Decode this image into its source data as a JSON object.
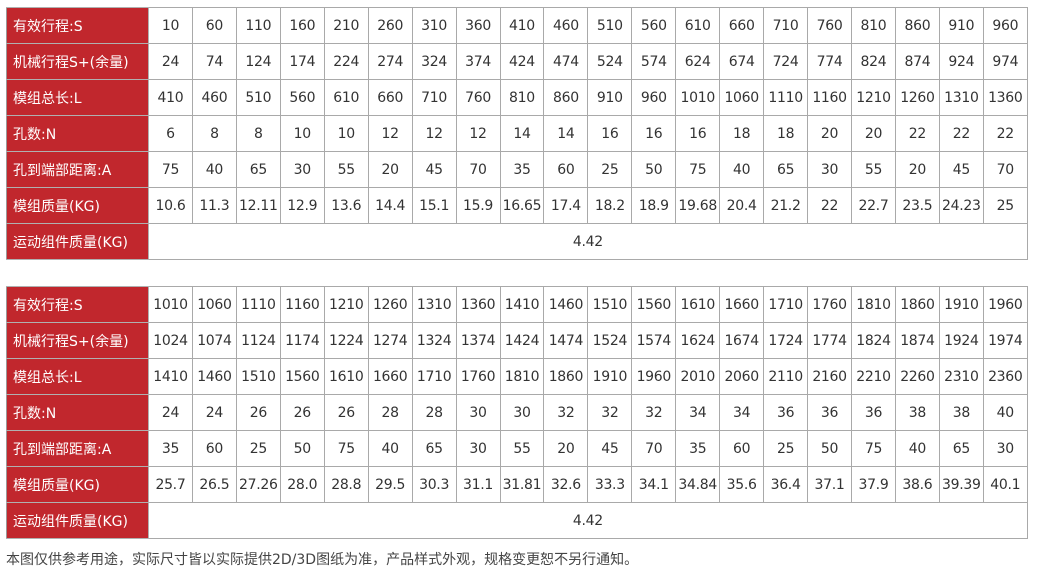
{
  "colors": {
    "header_bg": "#c1272d",
    "header_text": "#ffffff",
    "border": "#a9a9a9"
  },
  "tables": [
    {
      "rows": [
        {
          "label": "有效行程:S",
          "values": [
            "10",
            "60",
            "110",
            "160",
            "210",
            "260",
            "310",
            "360",
            "410",
            "460",
            "510",
            "560",
            "610",
            "660",
            "710",
            "760",
            "810",
            "860",
            "910",
            "960"
          ]
        },
        {
          "label": "机械行程S+(余量)",
          "values": [
            "24",
            "74",
            "124",
            "174",
            "224",
            "274",
            "324",
            "374",
            "424",
            "474",
            "524",
            "574",
            "624",
            "674",
            "724",
            "774",
            "824",
            "874",
            "924",
            "974"
          ]
        },
        {
          "label": "模组总长:L",
          "values": [
            "410",
            "460",
            "510",
            "560",
            "610",
            "660",
            "710",
            "760",
            "810",
            "860",
            "910",
            "960",
            "1010",
            "1060",
            "1110",
            "1160",
            "1210",
            "1260",
            "1310",
            "1360"
          ]
        },
        {
          "label": "孔数:N",
          "values": [
            "6",
            "8",
            "8",
            "10",
            "10",
            "12",
            "12",
            "12",
            "14",
            "14",
            "16",
            "16",
            "16",
            "18",
            "18",
            "20",
            "20",
            "22",
            "22",
            "22"
          ]
        },
        {
          "label": "孔到端部距离:A",
          "values": [
            "75",
            "40",
            "65",
            "30",
            "55",
            "20",
            "45",
            "70",
            "35",
            "60",
            "25",
            "50",
            "75",
            "40",
            "65",
            "30",
            "55",
            "20",
            "45",
            "70"
          ]
        },
        {
          "label": "模组质量(KG)",
          "values": [
            "10.6",
            "11.3",
            "12.11",
            "12.9",
            "13.6",
            "14.4",
            "15.1",
            "15.9",
            "16.65",
            "17.4",
            "18.2",
            "18.9",
            "19.68",
            "20.4",
            "21.2",
            "22",
            "22.7",
            "23.5",
            "24.23",
            "25"
          ]
        }
      ],
      "moving_mass": {
        "label": "运动组件质量(KG)",
        "value": "4.42"
      }
    },
    {
      "rows": [
        {
          "label": "有效行程:S",
          "values": [
            "1010",
            "1060",
            "1110",
            "1160",
            "1210",
            "1260",
            "1310",
            "1360",
            "1410",
            "1460",
            "1510",
            "1560",
            "1610",
            "1660",
            "1710",
            "1760",
            "1810",
            "1860",
            "1910",
            "1960"
          ]
        },
        {
          "label": "机械行程S+(余量)",
          "values": [
            "1024",
            "1074",
            "1124",
            "1174",
            "1224",
            "1274",
            "1324",
            "1374",
            "1424",
            "1474",
            "1524",
            "1574",
            "1624",
            "1674",
            "1724",
            "1774",
            "1824",
            "1874",
            "1924",
            "1974"
          ]
        },
        {
          "label": "模组总长:L",
          "values": [
            "1410",
            "1460",
            "1510",
            "1560",
            "1610",
            "1660",
            "1710",
            "1760",
            "1810",
            "1860",
            "1910",
            "1960",
            "2010",
            "2060",
            "2110",
            "2160",
            "2210",
            "2260",
            "2310",
            "2360"
          ]
        },
        {
          "label": "孔数:N",
          "values": [
            "24",
            "24",
            "26",
            "26",
            "26",
            "28",
            "28",
            "30",
            "30",
            "32",
            "32",
            "32",
            "34",
            "34",
            "36",
            "36",
            "36",
            "38",
            "38",
            "40"
          ]
        },
        {
          "label": "孔到端部距离:A",
          "values": [
            "35",
            "60",
            "25",
            "50",
            "75",
            "40",
            "65",
            "30",
            "55",
            "20",
            "45",
            "70",
            "35",
            "60",
            "25",
            "50",
            "75",
            "40",
            "65",
            "30"
          ]
        },
        {
          "label": "模组质量(KG)",
          "values": [
            "25.7",
            "26.5",
            "27.26",
            "28.0",
            "28.8",
            "29.5",
            "30.3",
            "31.1",
            "31.81",
            "32.6",
            "33.3",
            "34.1",
            "34.84",
            "35.6",
            "36.4",
            "37.1",
            "37.9",
            "38.6",
            "39.39",
            "40.1"
          ]
        }
      ],
      "moving_mass": {
        "label": "运动组件质量(KG)",
        "value": "4.42"
      }
    }
  ],
  "footer_note": "本图仅供参考用途，实际尺寸皆以实际提供2D/3D图纸为准，产品样式外观，规格变更恕不另行通知。"
}
